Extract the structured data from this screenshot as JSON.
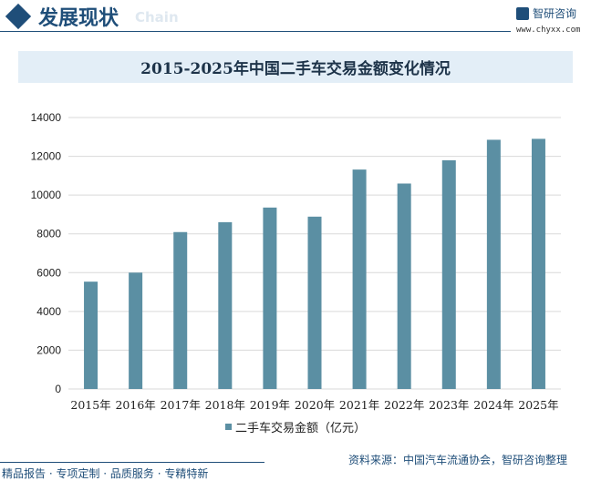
{
  "header": {
    "title": "发展现状",
    "subtitle": "Chain",
    "brand": "智研咨询",
    "url": "www.chyxx.com"
  },
  "colors": {
    "bar": "#5b8fa3",
    "brand": "#1f4e79",
    "title_bg": "#e3eef7"
  },
  "chart_data": {
    "type": "bar",
    "title": "2015-2025年中国二手车交易金额变化情况",
    "categories": [
      "2015年",
      "2016年",
      "2017年",
      "2018年",
      "2019年",
      "2020年",
      "2021年",
      "2022年",
      "2023年",
      "2024年",
      "2025年"
    ],
    "series": [
      {
        "name": "二手车交易金额（亿元）",
        "values": [
          5535,
          6000,
          8092,
          8603,
          9357,
          8888,
          11316,
          10595,
          11796,
          12852,
          12900
        ]
      }
    ],
    "ylim": [
      0,
      14000
    ],
    "yticks": [
      0,
      2000,
      4000,
      6000,
      8000,
      10000,
      12000,
      14000
    ],
    "grid": true,
    "legend": "bottom"
  },
  "footer": {
    "source": "资料来源：中国汽车流通协会，智研咨询整理",
    "slogan": "精品报告 · 专项定制 · 品质服务 · 专精特新"
  }
}
